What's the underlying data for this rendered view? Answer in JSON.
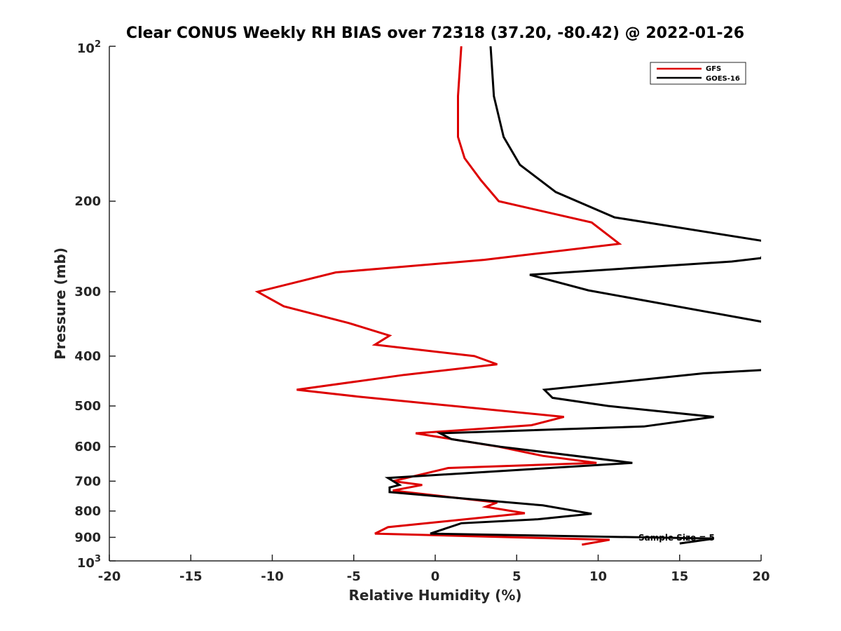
{
  "chart_data": {
    "type": "line",
    "title": "Clear CONUS Weekly RH BIAS over 72318 (37.20, -80.42) @ 2022-01-26",
    "xlabel": "Relative Humidity (%)",
    "ylabel": "Pressure (mb)",
    "xlim": [
      -20,
      20
    ],
    "ylim": [
      100,
      1000
    ],
    "yscale": "log",
    "y_reversed": true,
    "x_ticks": [
      -20,
      -15,
      -10,
      -5,
      0,
      5,
      10,
      15,
      20
    ],
    "x_tick_labels": [
      "-20",
      "-15",
      "-10",
      "-5",
      "0",
      "5",
      "10",
      "15",
      "20"
    ],
    "y_ticks": [
      200,
      300,
      400,
      500,
      600,
      700,
      800,
      900
    ],
    "y_tick_labels": [
      "200",
      "300",
      "400",
      "500",
      "600",
      "700",
      "800",
      "900"
    ],
    "y_end_labels": [
      {
        "value": 100,
        "base": "10",
        "exp": "2"
      },
      {
        "value": 1000,
        "base": "10",
        "exp": "3"
      }
    ],
    "grid": false,
    "legend_position": "top-right",
    "annotation": "Sample Size = 5",
    "series": [
      {
        "name": "GFS",
        "color": "#dd0000",
        "points": [
          [
            1.6,
            100
          ],
          [
            1.4,
            125
          ],
          [
            1.4,
            150
          ],
          [
            1.8,
            165
          ],
          [
            2.8,
            182
          ],
          [
            3.9,
            200
          ],
          [
            9.6,
            220
          ],
          [
            11.3,
            242
          ],
          [
            3.0,
            260
          ],
          [
            -6.1,
            275
          ],
          [
            -10.9,
            300
          ],
          [
            -9.3,
            320
          ],
          [
            -5.3,
            345
          ],
          [
            -2.8,
            365
          ],
          [
            -3.7,
            380
          ],
          [
            2.4,
            400
          ],
          [
            3.8,
            415
          ],
          [
            -1.9,
            435
          ],
          [
            -8.5,
            465
          ],
          [
            -4.6,
            480
          ],
          [
            7.9,
            525
          ],
          [
            5.9,
            545
          ],
          [
            -1.2,
            565
          ],
          [
            3.9,
            600
          ],
          [
            6.6,
            625
          ],
          [
            9.9,
            645
          ],
          [
            0.8,
            660
          ],
          [
            -2.6,
            700
          ],
          [
            -0.8,
            712
          ],
          [
            -2.6,
            730
          ],
          [
            3.8,
            770
          ],
          [
            3.1,
            785
          ],
          [
            5.5,
            808
          ],
          [
            -2.9,
            860
          ],
          [
            -3.7,
            885
          ],
          [
            10.7,
            910
          ],
          [
            9.0,
            930
          ]
        ]
      },
      {
        "name": "GOES-16",
        "color": "#000000",
        "points": [
          [
            3.4,
            100
          ],
          [
            3.6,
            125
          ],
          [
            4.2,
            150
          ],
          [
            5.2,
            170
          ],
          [
            7.4,
            192
          ],
          [
            11.0,
            215
          ],
          [
            20.5,
            240
          ],
          [
            20.0,
            258
          ],
          [
            18.2,
            262
          ],
          [
            5.8,
            278
          ],
          [
            9.4,
            298
          ],
          [
            20.5,
            345
          ],
          [
            20.5,
            425
          ],
          [
            16.5,
            432
          ],
          [
            6.7,
            465
          ],
          [
            7.2,
            482
          ],
          [
            10.6,
            500
          ],
          [
            17.1,
            525
          ],
          [
            12.8,
            548
          ],
          [
            0.3,
            565
          ],
          [
            1.0,
            580
          ],
          [
            4.0,
            600
          ],
          [
            12.1,
            645
          ],
          [
            6.0,
            663
          ],
          [
            -2.9,
            690
          ],
          [
            -2.2,
            712
          ],
          [
            -2.8,
            720
          ],
          [
            -2.8,
            735
          ],
          [
            6.6,
            780
          ],
          [
            9.6,
            810
          ],
          [
            6.3,
            830
          ],
          [
            1.6,
            845
          ],
          [
            -0.3,
            885
          ],
          [
            17.1,
            905
          ],
          [
            15.0,
            925
          ]
        ]
      }
    ]
  }
}
